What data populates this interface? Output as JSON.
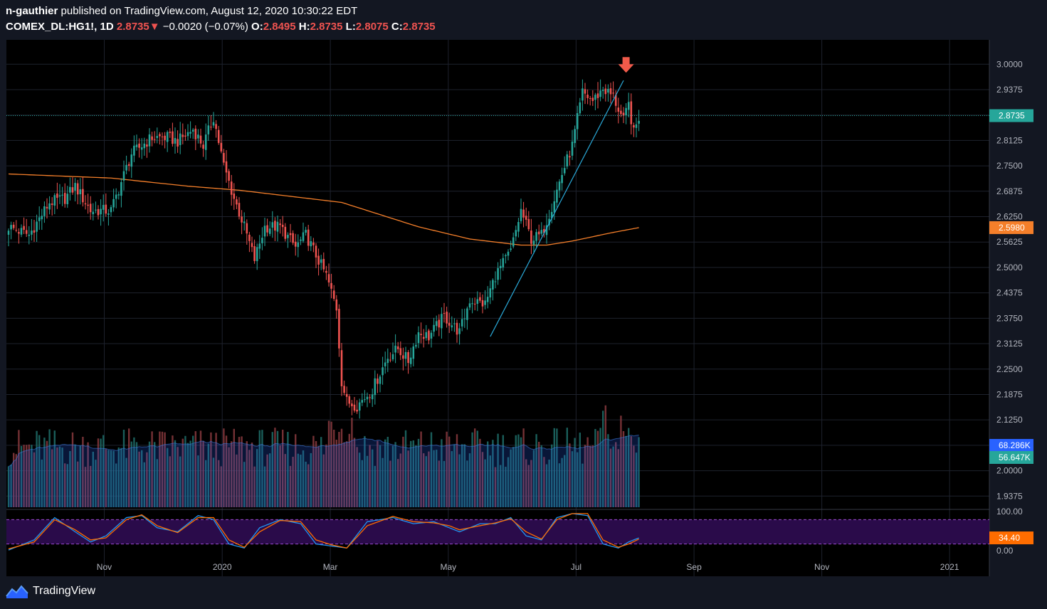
{
  "header": {
    "user": "n-gauthier",
    "published_text": "published on TradingView.com, August 12, 2020 10:30:22 EDT",
    "symbol": "COMEX_DL:HG1!, 1D",
    "last": "2.8735",
    "arrow": "▼",
    "change": "−0.0020 (−0.07%)",
    "o_label": "O:",
    "o_value": "2.8495",
    "h_label": "H:",
    "h_value": "2.8735",
    "l_label": "L:",
    "l_value": "2.8075",
    "c_label": "C:",
    "c_value": "2.8735"
  },
  "footer": {
    "brand": "TradingView",
    "logo_icon": "tradingview-logo-icon"
  },
  "colors": {
    "background": "#131722",
    "up": "#26a69a",
    "down": "#ef5350",
    "ma": "#f57f2a",
    "trendline": "#2aa9d8",
    "volume_ma": "#2962ff",
    "stoch_k": "#2196f3",
    "stoch_d": "#ff6d00",
    "stoch_band": "#2a0b4a"
  },
  "chart_data": {
    "type": "candlestick",
    "title": "COMEX_DL:HG1!, 1D",
    "price_axis": {
      "ticks": [
        "3.0000",
        "2.9375",
        "2.8750",
        "2.8125",
        "2.7500",
        "2.6875",
        "2.6250",
        "2.5625",
        "2.5000",
        "2.4375",
        "2.3750",
        "2.3125",
        "2.2500",
        "2.1875",
        "2.1250",
        "2.0625",
        "2.0000",
        "1.9375"
      ],
      "ylim": [
        1.91,
        3.06
      ],
      "last_price_label": "2.8735",
      "ma_label": "2.5980",
      "volume_label": "68.286K",
      "volume_ma_label": "56.647K"
    },
    "stoch_axis": {
      "ticks": [
        "100.00",
        "0.00"
      ],
      "band": [
        20,
        80
      ],
      "value_label": "34.40"
    },
    "time_axis": {
      "labels": [
        "Nov",
        "2020",
        "Mar",
        "May",
        "Jul",
        "Sep",
        "Nov",
        "2021"
      ],
      "label_x_fraction": [
        0.08,
        0.2,
        0.31,
        0.43,
        0.56,
        0.68,
        0.81,
        0.94
      ]
    },
    "close_anchors": [
      [
        0,
        2.6
      ],
      [
        8,
        2.58
      ],
      [
        16,
        2.66
      ],
      [
        22,
        2.67
      ],
      [
        26,
        2.7
      ],
      [
        32,
        2.64
      ],
      [
        40,
        2.64
      ],
      [
        48,
        2.78
      ],
      [
        56,
        2.82
      ],
      [
        62,
        2.82
      ],
      [
        66,
        2.81
      ],
      [
        72,
        2.84
      ],
      [
        76,
        2.8
      ],
      [
        80,
        2.87
      ],
      [
        84,
        2.75
      ],
      [
        88,
        2.67
      ],
      [
        92,
        2.6
      ],
      [
        96,
        2.52
      ],
      [
        100,
        2.6
      ],
      [
        106,
        2.6
      ],
      [
        112,
        2.55
      ],
      [
        116,
        2.58
      ],
      [
        120,
        2.53
      ],
      [
        124,
        2.48
      ],
      [
        128,
        2.4
      ],
      [
        130,
        2.22
      ],
      [
        132,
        2.17
      ],
      [
        136,
        2.16
      ],
      [
        142,
        2.2
      ],
      [
        148,
        2.28
      ],
      [
        152,
        2.3
      ],
      [
        156,
        2.27
      ],
      [
        160,
        2.34
      ],
      [
        164,
        2.33
      ],
      [
        170,
        2.38
      ],
      [
        176,
        2.34
      ],
      [
        180,
        2.42
      ],
      [
        186,
        2.41
      ],
      [
        190,
        2.48
      ],
      [
        196,
        2.54
      ],
      [
        200,
        2.64
      ],
      [
        204,
        2.57
      ],
      [
        208,
        2.58
      ],
      [
        212,
        2.65
      ],
      [
        216,
        2.73
      ],
      [
        220,
        2.8
      ],
      [
        224,
        2.93
      ],
      [
        228,
        2.91
      ],
      [
        232,
        2.94
      ],
      [
        236,
        2.92
      ],
      [
        240,
        2.86
      ],
      [
        242,
        2.9
      ],
      [
        244,
        2.83
      ],
      [
        246,
        2.87
      ]
    ],
    "ma_curve": [
      [
        0,
        2.73
      ],
      [
        40,
        2.72
      ],
      [
        70,
        2.7
      ],
      [
        90,
        2.69
      ],
      [
        130,
        2.66
      ],
      [
        160,
        2.6
      ],
      [
        180,
        2.57
      ],
      [
        200,
        2.555
      ],
      [
        210,
        2.555
      ],
      [
        220,
        2.565
      ],
      [
        235,
        2.585
      ],
      [
        246,
        2.598
      ]
    ],
    "trendline": [
      [
        188,
        2.33
      ],
      [
        240,
        2.96
      ]
    ],
    "bar_count": 247,
    "volume_scale_max": 100,
    "stoch_k_anchors": [
      [
        0,
        5
      ],
      [
        10,
        30
      ],
      [
        18,
        85
      ],
      [
        26,
        50
      ],
      [
        32,
        25
      ],
      [
        38,
        40
      ],
      [
        46,
        85
      ],
      [
        52,
        90
      ],
      [
        58,
        60
      ],
      [
        66,
        50
      ],
      [
        74,
        90
      ],
      [
        80,
        80
      ],
      [
        86,
        20
      ],
      [
        92,
        10
      ],
      [
        98,
        60
      ],
      [
        106,
        80
      ],
      [
        114,
        70
      ],
      [
        120,
        20
      ],
      [
        126,
        15
      ],
      [
        132,
        10
      ],
      [
        140,
        75
      ],
      [
        150,
        85
      ],
      [
        158,
        70
      ],
      [
        166,
        75
      ],
      [
        172,
        60
      ],
      [
        176,
        50
      ],
      [
        184,
        70
      ],
      [
        190,
        70
      ],
      [
        196,
        85
      ],
      [
        202,
        40
      ],
      [
        208,
        30
      ],
      [
        214,
        85
      ],
      [
        220,
        95
      ],
      [
        226,
        90
      ],
      [
        232,
        20
      ],
      [
        238,
        10
      ],
      [
        242,
        25
      ],
      [
        246,
        35
      ]
    ],
    "stoch_d_anchors": [
      [
        0,
        8
      ],
      [
        10,
        25
      ],
      [
        18,
        80
      ],
      [
        26,
        55
      ],
      [
        32,
        30
      ],
      [
        38,
        35
      ],
      [
        46,
        80
      ],
      [
        52,
        92
      ],
      [
        58,
        65
      ],
      [
        66,
        48
      ],
      [
        74,
        85
      ],
      [
        80,
        85
      ],
      [
        86,
        30
      ],
      [
        92,
        12
      ],
      [
        98,
        50
      ],
      [
        106,
        78
      ],
      [
        114,
        75
      ],
      [
        120,
        30
      ],
      [
        126,
        18
      ],
      [
        132,
        10
      ],
      [
        140,
        65
      ],
      [
        150,
        88
      ],
      [
        158,
        75
      ],
      [
        166,
        72
      ],
      [
        172,
        65
      ],
      [
        176,
        55
      ],
      [
        184,
        65
      ],
      [
        190,
        72
      ],
      [
        196,
        82
      ],
      [
        202,
        50
      ],
      [
        208,
        32
      ],
      [
        214,
        80
      ],
      [
        220,
        95
      ],
      [
        226,
        95
      ],
      [
        232,
        30
      ],
      [
        238,
        12
      ],
      [
        242,
        20
      ],
      [
        246,
        32
      ]
    ],
    "signal_arrow": {
      "bar": 241,
      "direction": "down"
    }
  }
}
